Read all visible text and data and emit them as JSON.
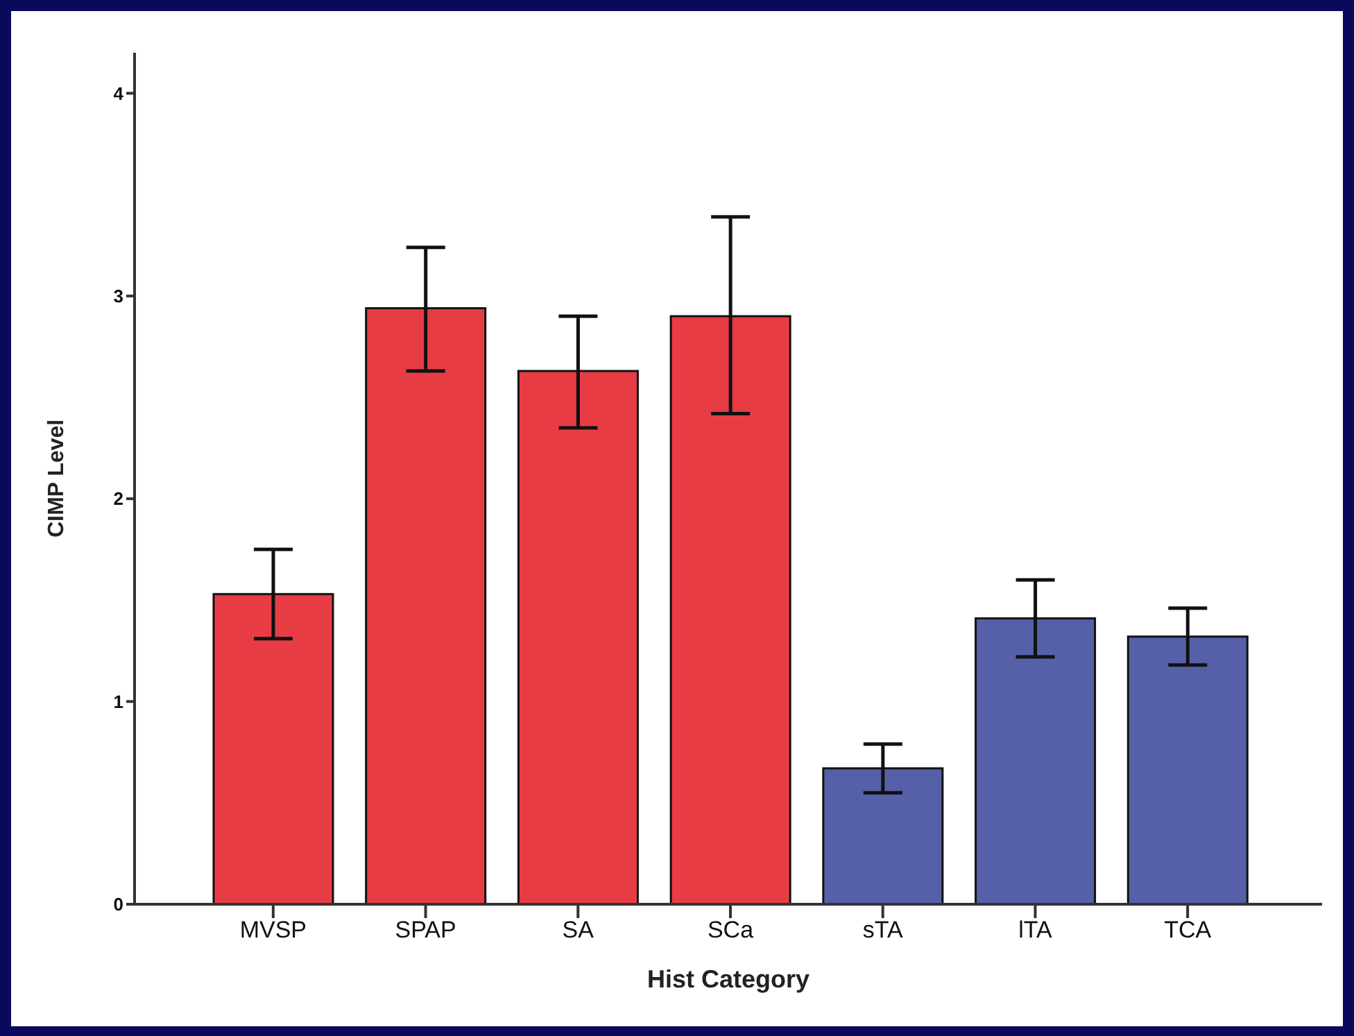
{
  "chart_data": {
    "type": "bar",
    "xlabel": "Hist Category",
    "ylabel": "CIMP Level",
    "categories": [
      "MVSP",
      "SPAP",
      "SA",
      "SCa",
      "sTA",
      "lTA",
      "TCA"
    ],
    "values": [
      1.53,
      2.94,
      2.63,
      2.9,
      0.67,
      1.41,
      1.32
    ],
    "errors": [
      [
        1.31,
        1.75
      ],
      [
        2.63,
        3.24
      ],
      [
        2.35,
        2.9
      ],
      [
        2.42,
        3.39
      ],
      [
        0.55,
        0.79
      ],
      [
        1.22,
        1.6
      ],
      [
        1.18,
        1.46
      ]
    ],
    "colors": [
      "#e83c44",
      "#e83c44",
      "#e83c44",
      "#e83c44",
      "#5560a8",
      "#5560a8",
      "#5560a8"
    ],
    "ylim": [
      0,
      4.2
    ],
    "yticks": [
      0,
      1,
      2,
      3,
      4
    ],
    "grid": false,
    "legend": false
  }
}
